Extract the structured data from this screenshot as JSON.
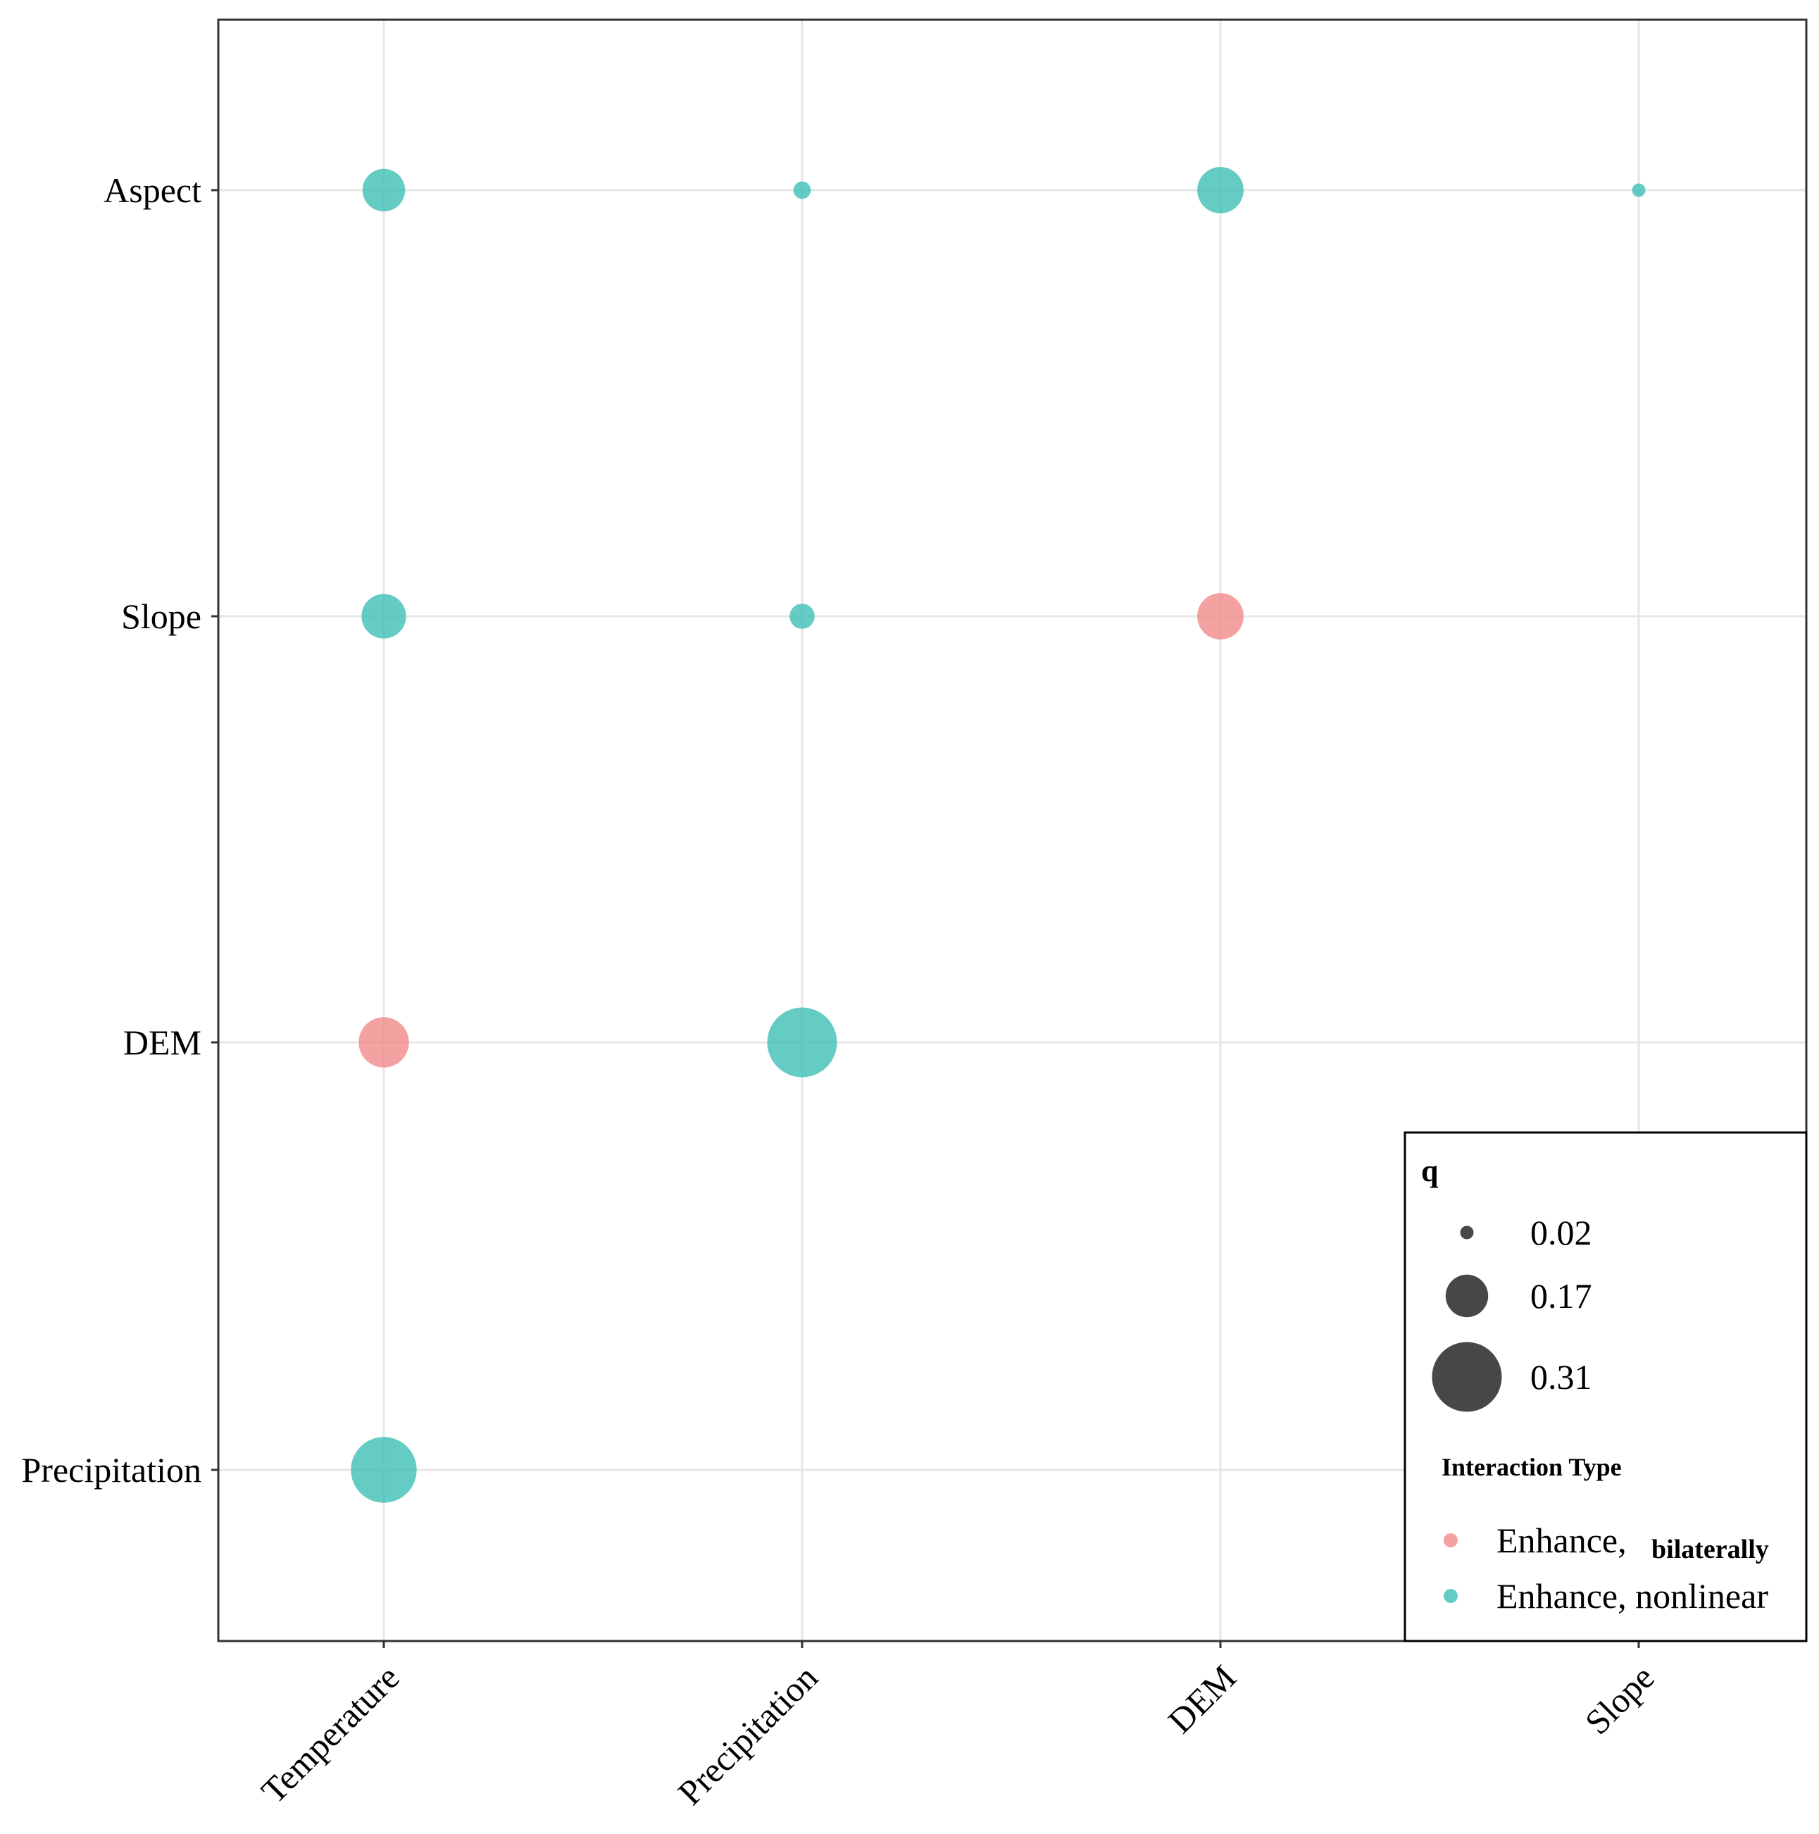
{
  "chart_data": {
    "type": "scatter",
    "subtype": "bubble",
    "title": "",
    "xlabel": "",
    "ylabel": "",
    "x_categories": [
      "Temperature",
      "Precipitation",
      "DEM",
      "Slope"
    ],
    "y_categories": [
      "Aspect",
      "Slope",
      "DEM",
      "Precipitation"
    ],
    "grid": true,
    "legend_position": "bottom-right",
    "size_legend": {
      "title": "q",
      "values": [
        0.02,
        0.17,
        0.31
      ],
      "labels": [
        "0.02",
        "0.17",
        "0.31"
      ]
    },
    "color_legend": {
      "title": "Interaction Type",
      "entries": [
        {
          "key": "bilateral",
          "label": "Enhance, ",
          "label_emphasis": "bilaterally",
          "color": "#F08A89"
        },
        {
          "key": "nonlinear",
          "label": "Enhance, nonlinear",
          "label_emphasis": "",
          "color": "#3EBFB5"
        }
      ]
    },
    "points": [
      {
        "x": "Temperature",
        "y": "Aspect",
        "q": 0.17,
        "type": "nonlinear"
      },
      {
        "x": "Precipitation",
        "y": "Aspect",
        "q": 0.04,
        "type": "nonlinear"
      },
      {
        "x": "DEM",
        "y": "Aspect",
        "q": 0.19,
        "type": "nonlinear"
      },
      {
        "x": "Slope",
        "y": "Aspect",
        "q": 0.02,
        "type": "nonlinear"
      },
      {
        "x": "Temperature",
        "y": "Slope",
        "q": 0.18,
        "type": "nonlinear"
      },
      {
        "x": "Precipitation",
        "y": "Slope",
        "q": 0.08,
        "type": "nonlinear"
      },
      {
        "x": "DEM",
        "y": "Slope",
        "q": 0.19,
        "type": "bilateral"
      },
      {
        "x": "Temperature",
        "y": "DEM",
        "q": 0.21,
        "type": "bilateral"
      },
      {
        "x": "Precipitation",
        "y": "DEM",
        "q": 0.31,
        "type": "nonlinear"
      },
      {
        "x": "Temperature",
        "y": "Precipitation",
        "q": 0.29,
        "type": "nonlinear"
      }
    ]
  }
}
